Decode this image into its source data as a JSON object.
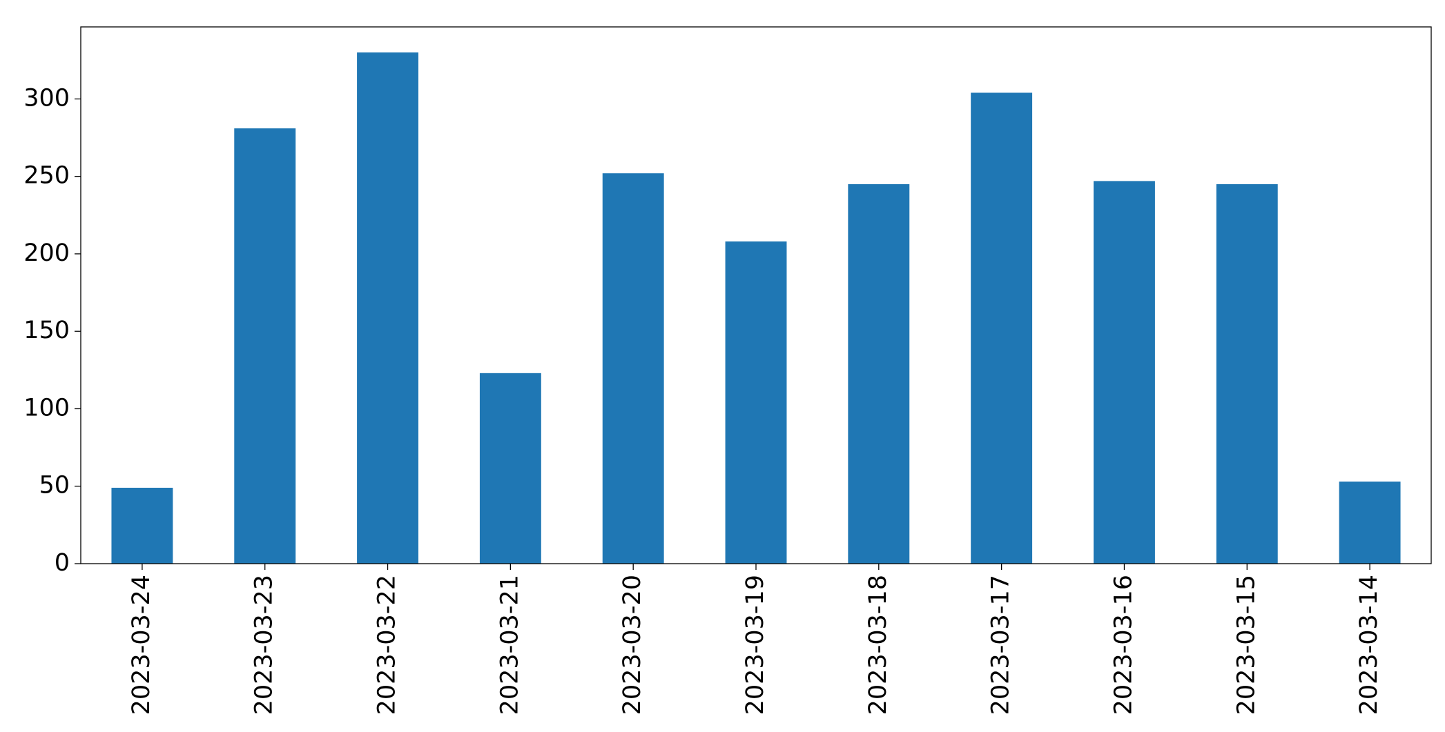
{
  "chart_data": {
    "type": "bar",
    "categories": [
      "2023-03-24",
      "2023-03-23",
      "2023-03-22",
      "2023-03-21",
      "2023-03-20",
      "2023-03-19",
      "2023-03-18",
      "2023-03-17",
      "2023-03-16",
      "2023-03-15",
      "2023-03-14"
    ],
    "values": [
      49,
      281,
      330,
      123,
      252,
      208,
      245,
      304,
      247,
      245,
      53
    ],
    "color": "#1f77b4",
    "ylim": [
      0,
      346.5
    ],
    "yticks": [
      0,
      50,
      100,
      150,
      200,
      250,
      300
    ],
    "grid": false
  }
}
